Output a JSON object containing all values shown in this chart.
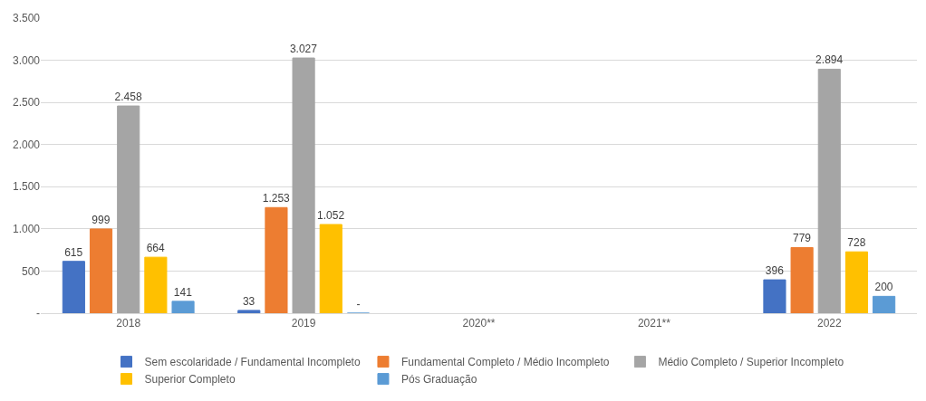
{
  "chart_data": {
    "type": "bar",
    "categories": [
      "2018",
      "2019",
      "2020**",
      "2021**",
      "2022"
    ],
    "series": [
      {
        "name": "Sem escolaridade / Fundamental Incompleto",
        "color": "#4472c4",
        "values": [
          615,
          33,
          null,
          null,
          396
        ],
        "value_labels": [
          "615",
          "33",
          null,
          null,
          "396"
        ]
      },
      {
        "name": "Fundamental Completo / Médio Incompleto",
        "color": "#ed7d31",
        "values": [
          999,
          1253,
          null,
          null,
          779
        ],
        "value_labels": [
          "999",
          "1.253",
          null,
          null,
          "779"
        ]
      },
      {
        "name": "Médio Completo / Superior Incompleto",
        "color": "#a5a5a5",
        "values": [
          2458,
          3027,
          null,
          null,
          2894
        ],
        "value_labels": [
          "2.458",
          "3.027",
          null,
          null,
          "2.894"
        ]
      },
      {
        "name": "Superior Completo",
        "color": "#ffc000",
        "values": [
          664,
          1052,
          null,
          null,
          728
        ],
        "value_labels": [
          "664",
          "1.052",
          null,
          null,
          "728"
        ]
      },
      {
        "name": "Pós Graduação",
        "color": "#5b9bd5",
        "values": [
          141,
          0,
          null,
          null,
          200
        ],
        "value_labels": [
          "141",
          "-",
          null,
          null,
          "200"
        ]
      }
    ],
    "ylim": [
      0,
      3500
    ],
    "yticks": [
      {
        "value": 0,
        "label": "-"
      },
      500,
      {
        "value": 1000,
        "label": "1.000"
      },
      {
        "value": 1500,
        "label": "1.500"
      },
      {
        "value": 2000,
        "label": "2.000"
      },
      {
        "value": 2500,
        "label": "2.500"
      },
      {
        "value": 3000,
        "label": "3.000"
      },
      {
        "value": 3500,
        "label": "3.500"
      }
    ],
    "grid": "y",
    "legend": "bottom"
  }
}
